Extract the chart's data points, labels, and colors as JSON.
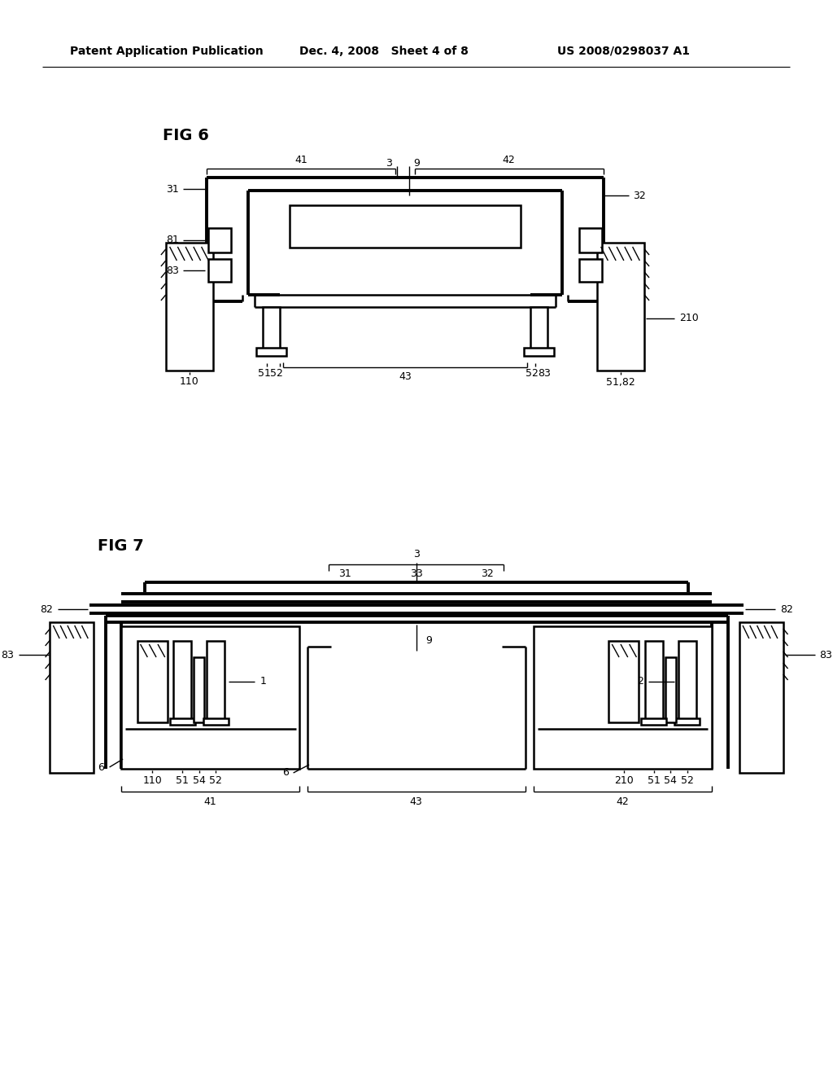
{
  "bg_color": "#ffffff",
  "header_left": "Patent Application Publication",
  "header_mid": "Dec. 4, 2008   Sheet 4 of 8",
  "header_right": "US 2008/0298037 A1",
  "fig6_label": "FIG 6",
  "fig7_label": "FIG 7",
  "line_color": "#000000"
}
